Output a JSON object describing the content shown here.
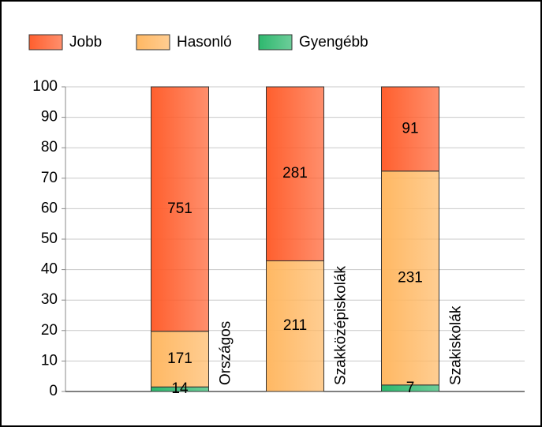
{
  "chart_data": {
    "type": "bar",
    "stacking": "percent",
    "categories": [
      "Országos",
      "Szakközépiskolák",
      "Szakiskolák"
    ],
    "series": [
      {
        "name": "Gyengébb",
        "color": "#2eb86e",
        "values": [
          14,
          0,
          7
        ]
      },
      {
        "name": "Hasonló",
        "color": "#ffb863",
        "values": [
          171,
          211,
          231
        ]
      },
      {
        "name": "Jobb",
        "color": "#ff5f2e",
        "values": [
          751,
          281,
          91
        ]
      }
    ],
    "legend_order": [
      2,
      1,
      0
    ],
    "ylim": [
      0,
      100
    ],
    "yticks": [
      0,
      10,
      20,
      30,
      40,
      50,
      60,
      70,
      80,
      90,
      100
    ],
    "grid": true
  }
}
